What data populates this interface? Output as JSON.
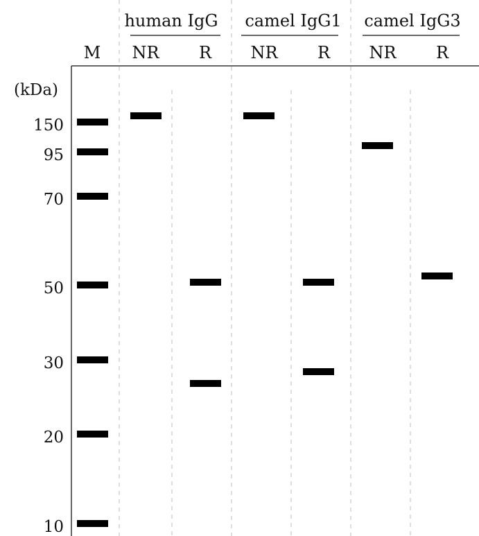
{
  "gel": {
    "unit_label": "(kDa)",
    "colors": {
      "band": "#000000",
      "frame": "#333333",
      "guide": "#c8c8c8",
      "text": "#111111"
    },
    "groups": [
      {
        "label": "human IgG"
      },
      {
        "label": "camel IgG1"
      },
      {
        "label": "camel IgG3"
      }
    ],
    "lanes": [
      {
        "label": "M"
      },
      {
        "label": "NR"
      },
      {
        "label": "R"
      },
      {
        "label": "NR"
      },
      {
        "label": "R"
      },
      {
        "label": "NR"
      },
      {
        "label": "R"
      }
    ],
    "marker_labels": [
      "150",
      "95",
      "70",
      "50",
      "30",
      "20",
      "10"
    ]
  }
}
